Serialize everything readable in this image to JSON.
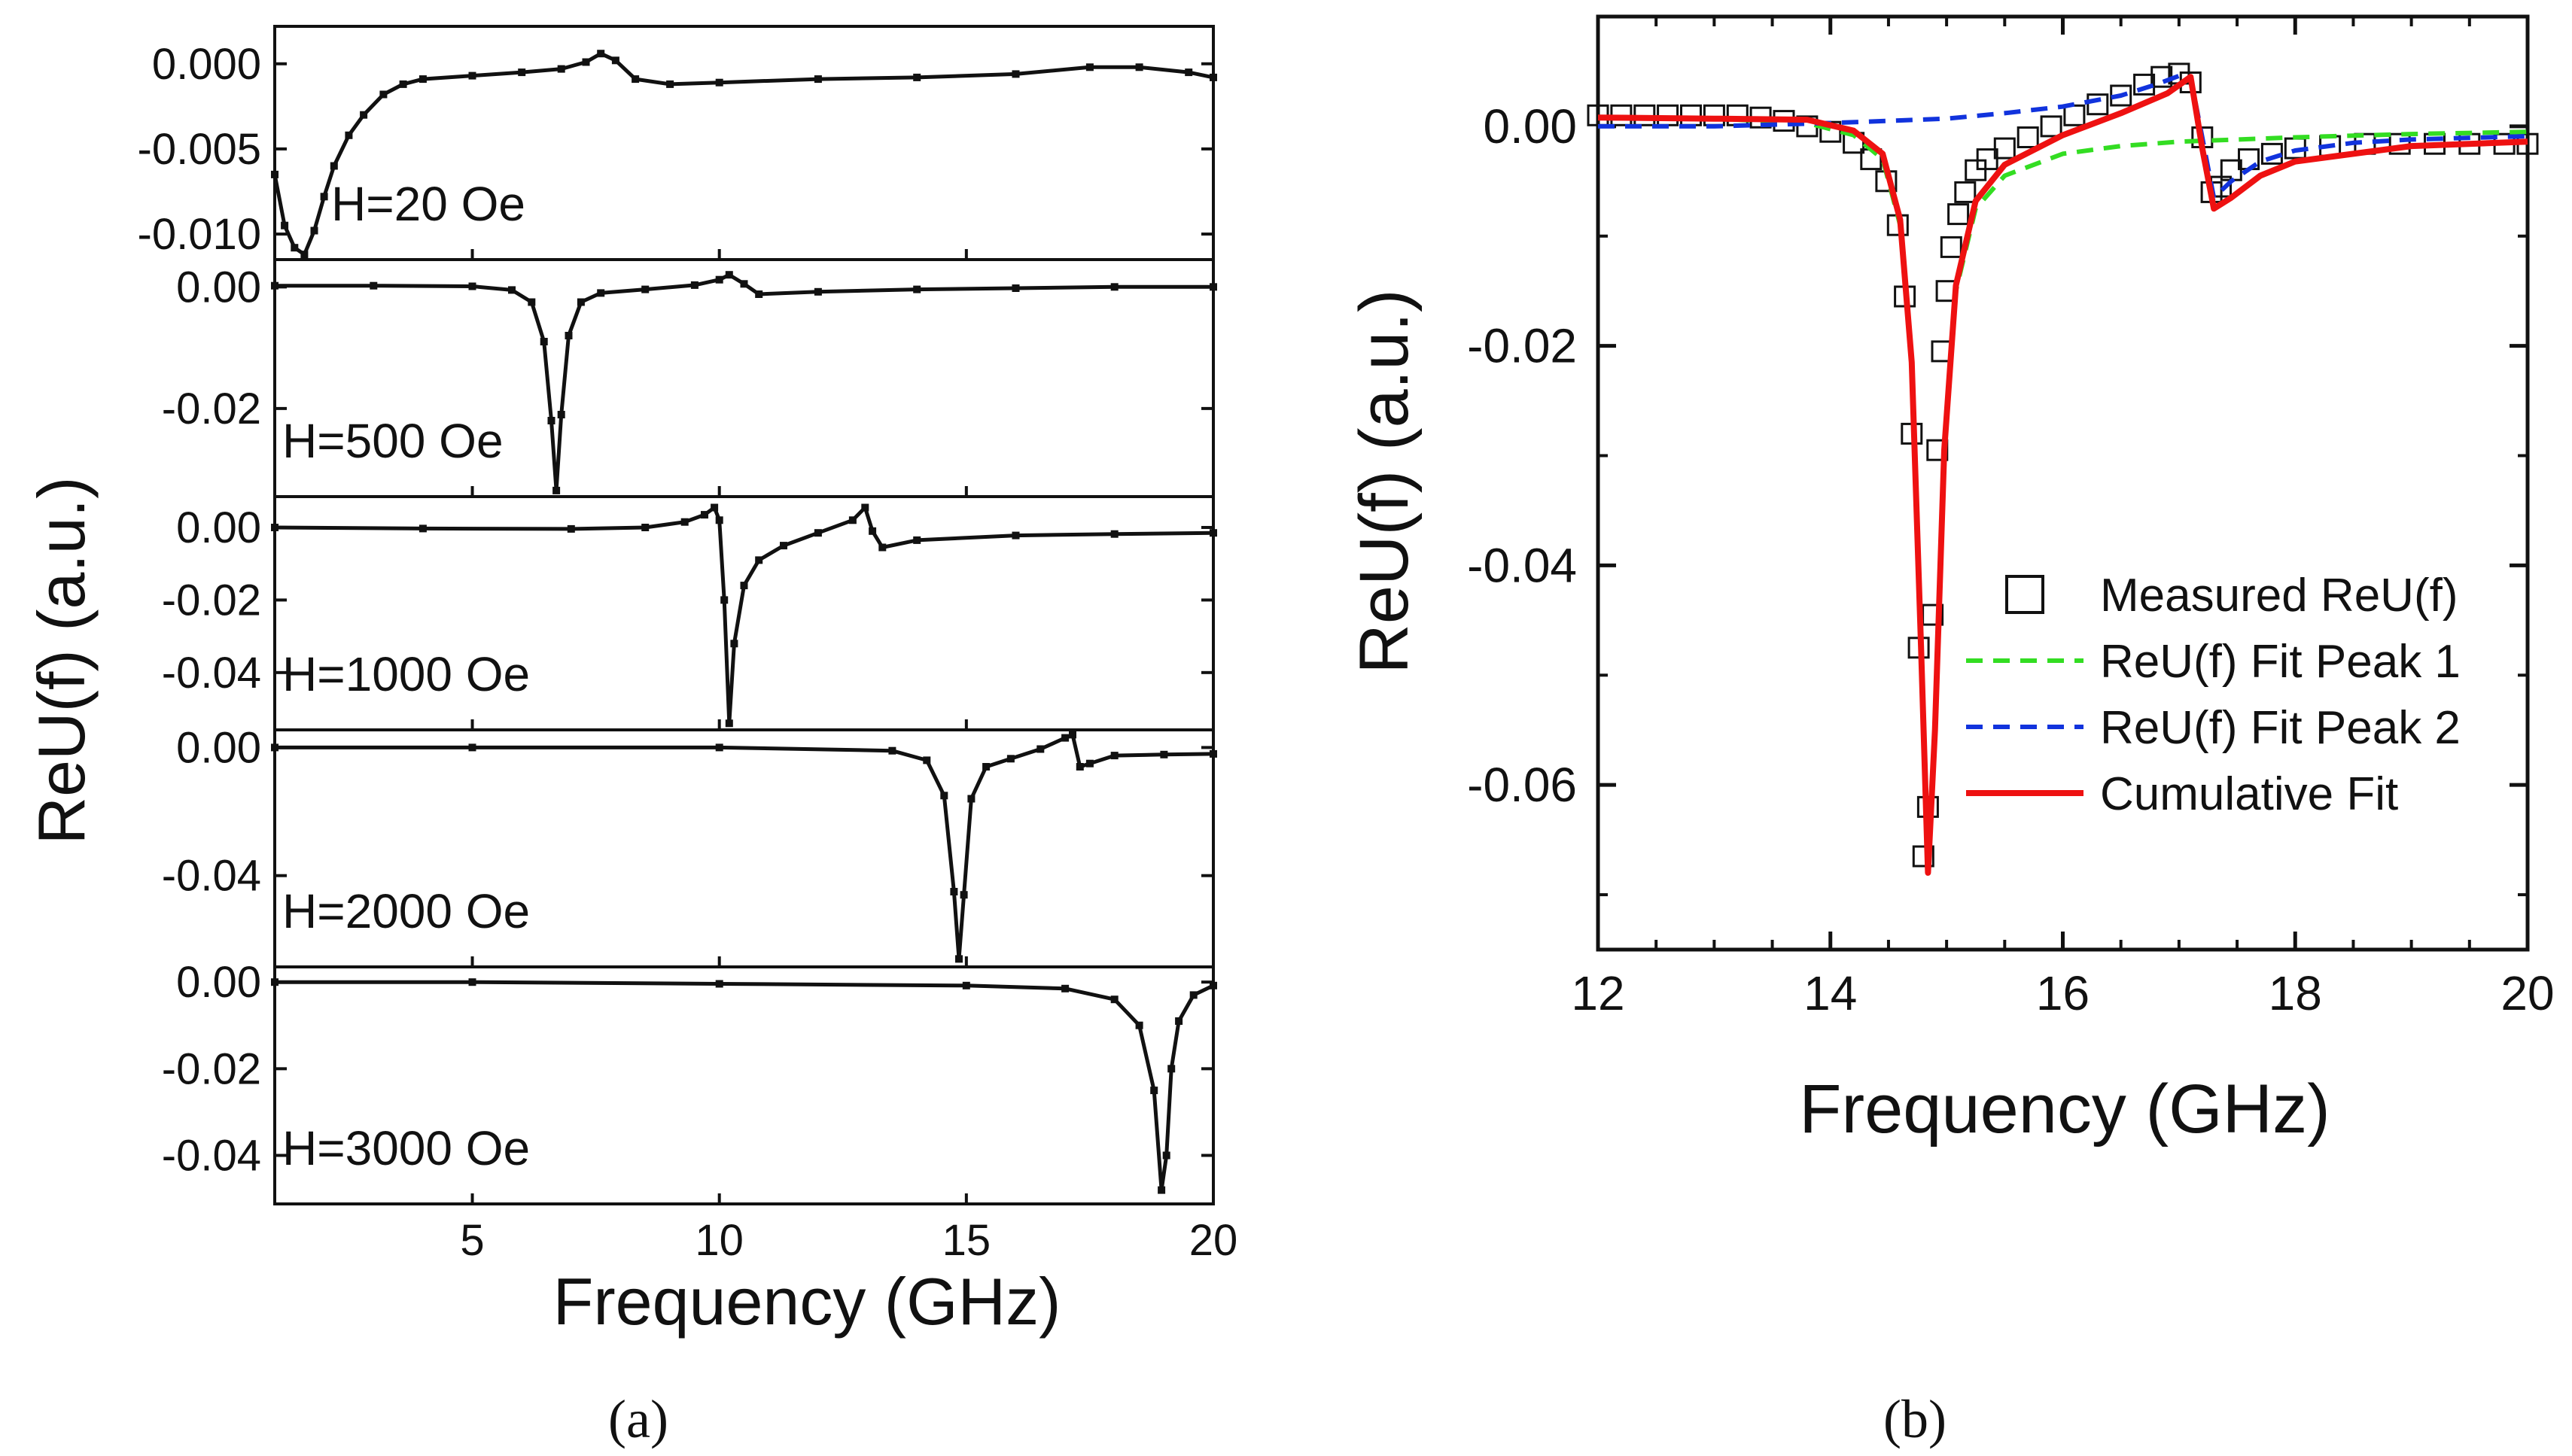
{
  "figure": {
    "caption_a": "(a)",
    "caption_b": "(b)"
  },
  "chart_data": [
    {
      "id": "a",
      "type": "line",
      "title": "",
      "xlabel": "Frequency (GHz)",
      "ylabel": "ReU(f) (a.u.)",
      "xlim": [
        1,
        20
      ],
      "xticks": [
        5,
        10,
        15,
        20
      ],
      "xtick_labels": [
        "5",
        "10",
        "15",
        "20"
      ],
      "color": "#111111",
      "panels": [
        {
          "label": "H=20 Oe",
          "ylim": [
            -0.0115,
            0.0022
          ],
          "yticks": [
            0.0,
            -0.005,
            -0.01
          ],
          "ytick_labels": [
            "0.000",
            "-0.005",
            "-0.010"
          ],
          "x": [
            1.0,
            1.2,
            1.4,
            1.6,
            1.8,
            2.0,
            2.2,
            2.5,
            2.8,
            3.2,
            3.6,
            4.0,
            5.0,
            6.0,
            6.8,
            7.3,
            7.6,
            7.9,
            8.3,
            9.0,
            10.0,
            12.0,
            14.0,
            16.0,
            17.5,
            18.5,
            19.5,
            20.0
          ],
          "y": [
            -0.0065,
            -0.0095,
            -0.0108,
            -0.0112,
            -0.0098,
            -0.0078,
            -0.006,
            -0.0042,
            -0.003,
            -0.0018,
            -0.0012,
            -0.0009,
            -0.0007,
            -0.0005,
            -0.0003,
            0.0001,
            0.0006,
            0.0002,
            -0.0009,
            -0.0012,
            -0.0011,
            -0.0009,
            -0.0008,
            -0.0006,
            -0.0002,
            -0.0002,
            -0.0005,
            -0.0008
          ]
        },
        {
          "label": "H=500 Oe",
          "ylim": [
            -0.0345,
            0.0045
          ],
          "yticks": [
            0.0,
            -0.02
          ],
          "ytick_labels": [
            "0.00",
            "-0.02"
          ],
          "x": [
            1.0,
            3.0,
            5.0,
            5.8,
            6.2,
            6.45,
            6.6,
            6.7,
            6.8,
            6.95,
            7.2,
            7.6,
            8.5,
            9.5,
            10.0,
            10.2,
            10.5,
            10.8,
            12.0,
            14.0,
            16.0,
            18.0,
            20.0
          ],
          "y": [
            0.0002,
            0.0002,
            0.0001,
            -0.0005,
            -0.0025,
            -0.009,
            -0.022,
            -0.0335,
            -0.021,
            -0.008,
            -0.0025,
            -0.001,
            -0.0004,
            0.0003,
            0.0012,
            0.002,
            0.0005,
            -0.0012,
            -0.0008,
            -0.0004,
            -0.0002,
            0.0,
            0.0
          ]
        },
        {
          "label": "H=1000 Oe",
          "ylim": [
            -0.0558,
            0.0085
          ],
          "yticks": [
            0.0,
            -0.02,
            -0.04
          ],
          "ytick_labels": [
            "0.00",
            "-0.02",
            "-0.04"
          ],
          "x": [
            1.0,
            4.0,
            7.0,
            8.5,
            9.3,
            9.7,
            9.9,
            10.0,
            10.1,
            10.2,
            10.3,
            10.5,
            10.8,
            11.3,
            12.0,
            12.7,
            12.95,
            13.1,
            13.3,
            14.0,
            16.0,
            18.0,
            20.0
          ],
          "y": [
            0.0,
            -0.0003,
            -0.0004,
            0.0,
            0.0015,
            0.0035,
            0.0055,
            0.002,
            -0.02,
            -0.054,
            -0.032,
            -0.016,
            -0.009,
            -0.005,
            -0.0015,
            0.002,
            0.0055,
            -0.001,
            -0.0055,
            -0.0035,
            -0.0022,
            -0.0018,
            -0.0015
          ]
        },
        {
          "label": "H=2000 Oe",
          "ylim": [
            -0.0685,
            0.0055
          ],
          "yticks": [
            0.0,
            -0.04
          ],
          "ytick_labels": [
            "0.00",
            "-0.04"
          ],
          "x": [
            1.0,
            5.0,
            10.0,
            13.5,
            14.2,
            14.55,
            14.75,
            14.85,
            14.95,
            15.1,
            15.4,
            15.9,
            16.5,
            17.0,
            17.15,
            17.3,
            17.5,
            18.0,
            19.0,
            20.0
          ],
          "y": [
            0.0,
            0.0,
            0.0,
            -0.001,
            -0.004,
            -0.015,
            -0.045,
            -0.066,
            -0.046,
            -0.016,
            -0.006,
            -0.0035,
            -0.0005,
            0.003,
            0.004,
            -0.006,
            -0.005,
            -0.0025,
            -0.0022,
            -0.002
          ]
        },
        {
          "label": "H=3000 Oe",
          "ylim": [
            -0.0512,
            0.0035
          ],
          "yticks": [
            0.0,
            -0.02,
            -0.04
          ],
          "ytick_labels": [
            "0.00",
            "-0.02",
            "-0.04"
          ],
          "x": [
            1.0,
            5.0,
            10.0,
            15.0,
            17.0,
            18.0,
            18.5,
            18.8,
            18.95,
            19.05,
            19.15,
            19.3,
            19.6,
            20.0
          ],
          "y": [
            0.0,
            0.0,
            -0.0004,
            -0.0008,
            -0.0015,
            -0.004,
            -0.01,
            -0.025,
            -0.048,
            -0.04,
            -0.02,
            -0.009,
            -0.003,
            -0.0008
          ]
        }
      ]
    },
    {
      "id": "b",
      "type": "line",
      "title": "",
      "xlabel": "Frequency (GHz)",
      "ylabel": "ReU(f) (a.u.)",
      "xlim": [
        12,
        20
      ],
      "ylim": [
        -0.075,
        0.01
      ],
      "xticks": [
        12,
        14,
        16,
        18,
        20
      ],
      "xtick_labels": [
        "12",
        "14",
        "16",
        "18",
        "20"
      ],
      "yticks": [
        0.0,
        -0.02,
        -0.04,
        -0.06
      ],
      "ytick_labels": [
        "0.00",
        "-0.02",
        "-0.04",
        "-0.06"
      ],
      "legend_position": "bottom-right",
      "series": [
        {
          "name": "Measured ReU(f)",
          "style": "open-square-markers",
          "color": "#111111",
          "x": [
            12.0,
            12.2,
            12.4,
            12.6,
            12.8,
            13.0,
            13.2,
            13.4,
            13.6,
            13.8,
            14.0,
            14.2,
            14.35,
            14.48,
            14.58,
            14.64,
            14.7,
            14.76,
            14.8,
            14.84,
            14.88,
            14.92,
            14.96,
            15.0,
            15.04,
            15.1,
            15.16,
            15.25,
            15.35,
            15.5,
            15.7,
            15.9,
            16.1,
            16.3,
            16.5,
            16.7,
            16.85,
            17.0,
            17.1,
            17.2,
            17.28,
            17.36,
            17.45,
            17.6,
            17.8,
            18.0,
            18.3,
            18.6,
            18.9,
            19.2,
            19.5,
            19.8,
            20.0
          ],
          "y": [
            0.001,
            0.001,
            0.001,
            0.001,
            0.001,
            0.001,
            0.001,
            0.0008,
            0.0005,
            0.0,
            -0.0005,
            -0.0015,
            -0.003,
            -0.005,
            -0.009,
            -0.0155,
            -0.028,
            -0.0475,
            -0.0665,
            -0.062,
            -0.0445,
            -0.0295,
            -0.0205,
            -0.015,
            -0.011,
            -0.008,
            -0.006,
            -0.004,
            -0.003,
            -0.002,
            -0.001,
            0.0,
            0.001,
            0.002,
            0.0028,
            0.0038,
            0.0045,
            0.0048,
            0.004,
            -0.001,
            -0.006,
            -0.0055,
            -0.004,
            -0.003,
            -0.0025,
            -0.002,
            -0.0018,
            -0.0016,
            -0.0016,
            -0.0016,
            -0.0016,
            -0.0016,
            -0.0016
          ]
        },
        {
          "name": "ReU(f) Fit Peak 1",
          "style": "dashed",
          "color": "#33dd22",
          "x": [
            12.0,
            13.0,
            13.8,
            14.2,
            14.45,
            14.6,
            14.7,
            14.78,
            14.84,
            14.9,
            14.98,
            15.08,
            15.25,
            15.5,
            16.0,
            16.5,
            17.0,
            18.0,
            19.0,
            20.0
          ],
          "y": [
            0.0008,
            0.0007,
            0.0003,
            -0.0008,
            -0.003,
            -0.009,
            -0.022,
            -0.048,
            -0.0675,
            -0.055,
            -0.03,
            -0.015,
            -0.0075,
            -0.0045,
            -0.0025,
            -0.0018,
            -0.0014,
            -0.001,
            -0.0007,
            -0.0005
          ]
        },
        {
          "name": "ReU(f) Fit Peak 2",
          "style": "dashed",
          "color": "#1133dd",
          "x": [
            12.0,
            13.0,
            14.0,
            15.0,
            15.5,
            16.0,
            16.5,
            16.8,
            17.0,
            17.1,
            17.2,
            17.3,
            17.45,
            17.7,
            18.0,
            18.5,
            19.0,
            20.0
          ],
          "y": [
            0.0,
            0.0,
            0.0003,
            0.0007,
            0.0012,
            0.0018,
            0.0028,
            0.0038,
            0.0046,
            0.0045,
            -0.001,
            -0.0065,
            -0.005,
            -0.0032,
            -0.0022,
            -0.0015,
            -0.0012,
            -0.0009
          ]
        },
        {
          "name": "Cumulative Fit",
          "style": "solid",
          "color": "#ee1111",
          "x": [
            12.0,
            13.0,
            13.8,
            14.2,
            14.45,
            14.6,
            14.7,
            14.78,
            14.84,
            14.9,
            14.98,
            15.08,
            15.25,
            15.5,
            16.0,
            16.5,
            16.9,
            17.1,
            17.2,
            17.3,
            17.45,
            17.7,
            18.0,
            18.5,
            19.0,
            20.0
          ],
          "y": [
            0.0008,
            0.0007,
            0.0006,
            -0.0004,
            -0.0025,
            -0.0085,
            -0.0215,
            -0.0475,
            -0.068,
            -0.055,
            -0.0295,
            -0.0145,
            -0.0068,
            -0.0035,
            -0.0008,
            0.0012,
            0.003,
            0.0045,
            -0.002,
            -0.0075,
            -0.0065,
            -0.0045,
            -0.0032,
            -0.0025,
            -0.0018,
            -0.0014
          ]
        }
      ]
    }
  ]
}
